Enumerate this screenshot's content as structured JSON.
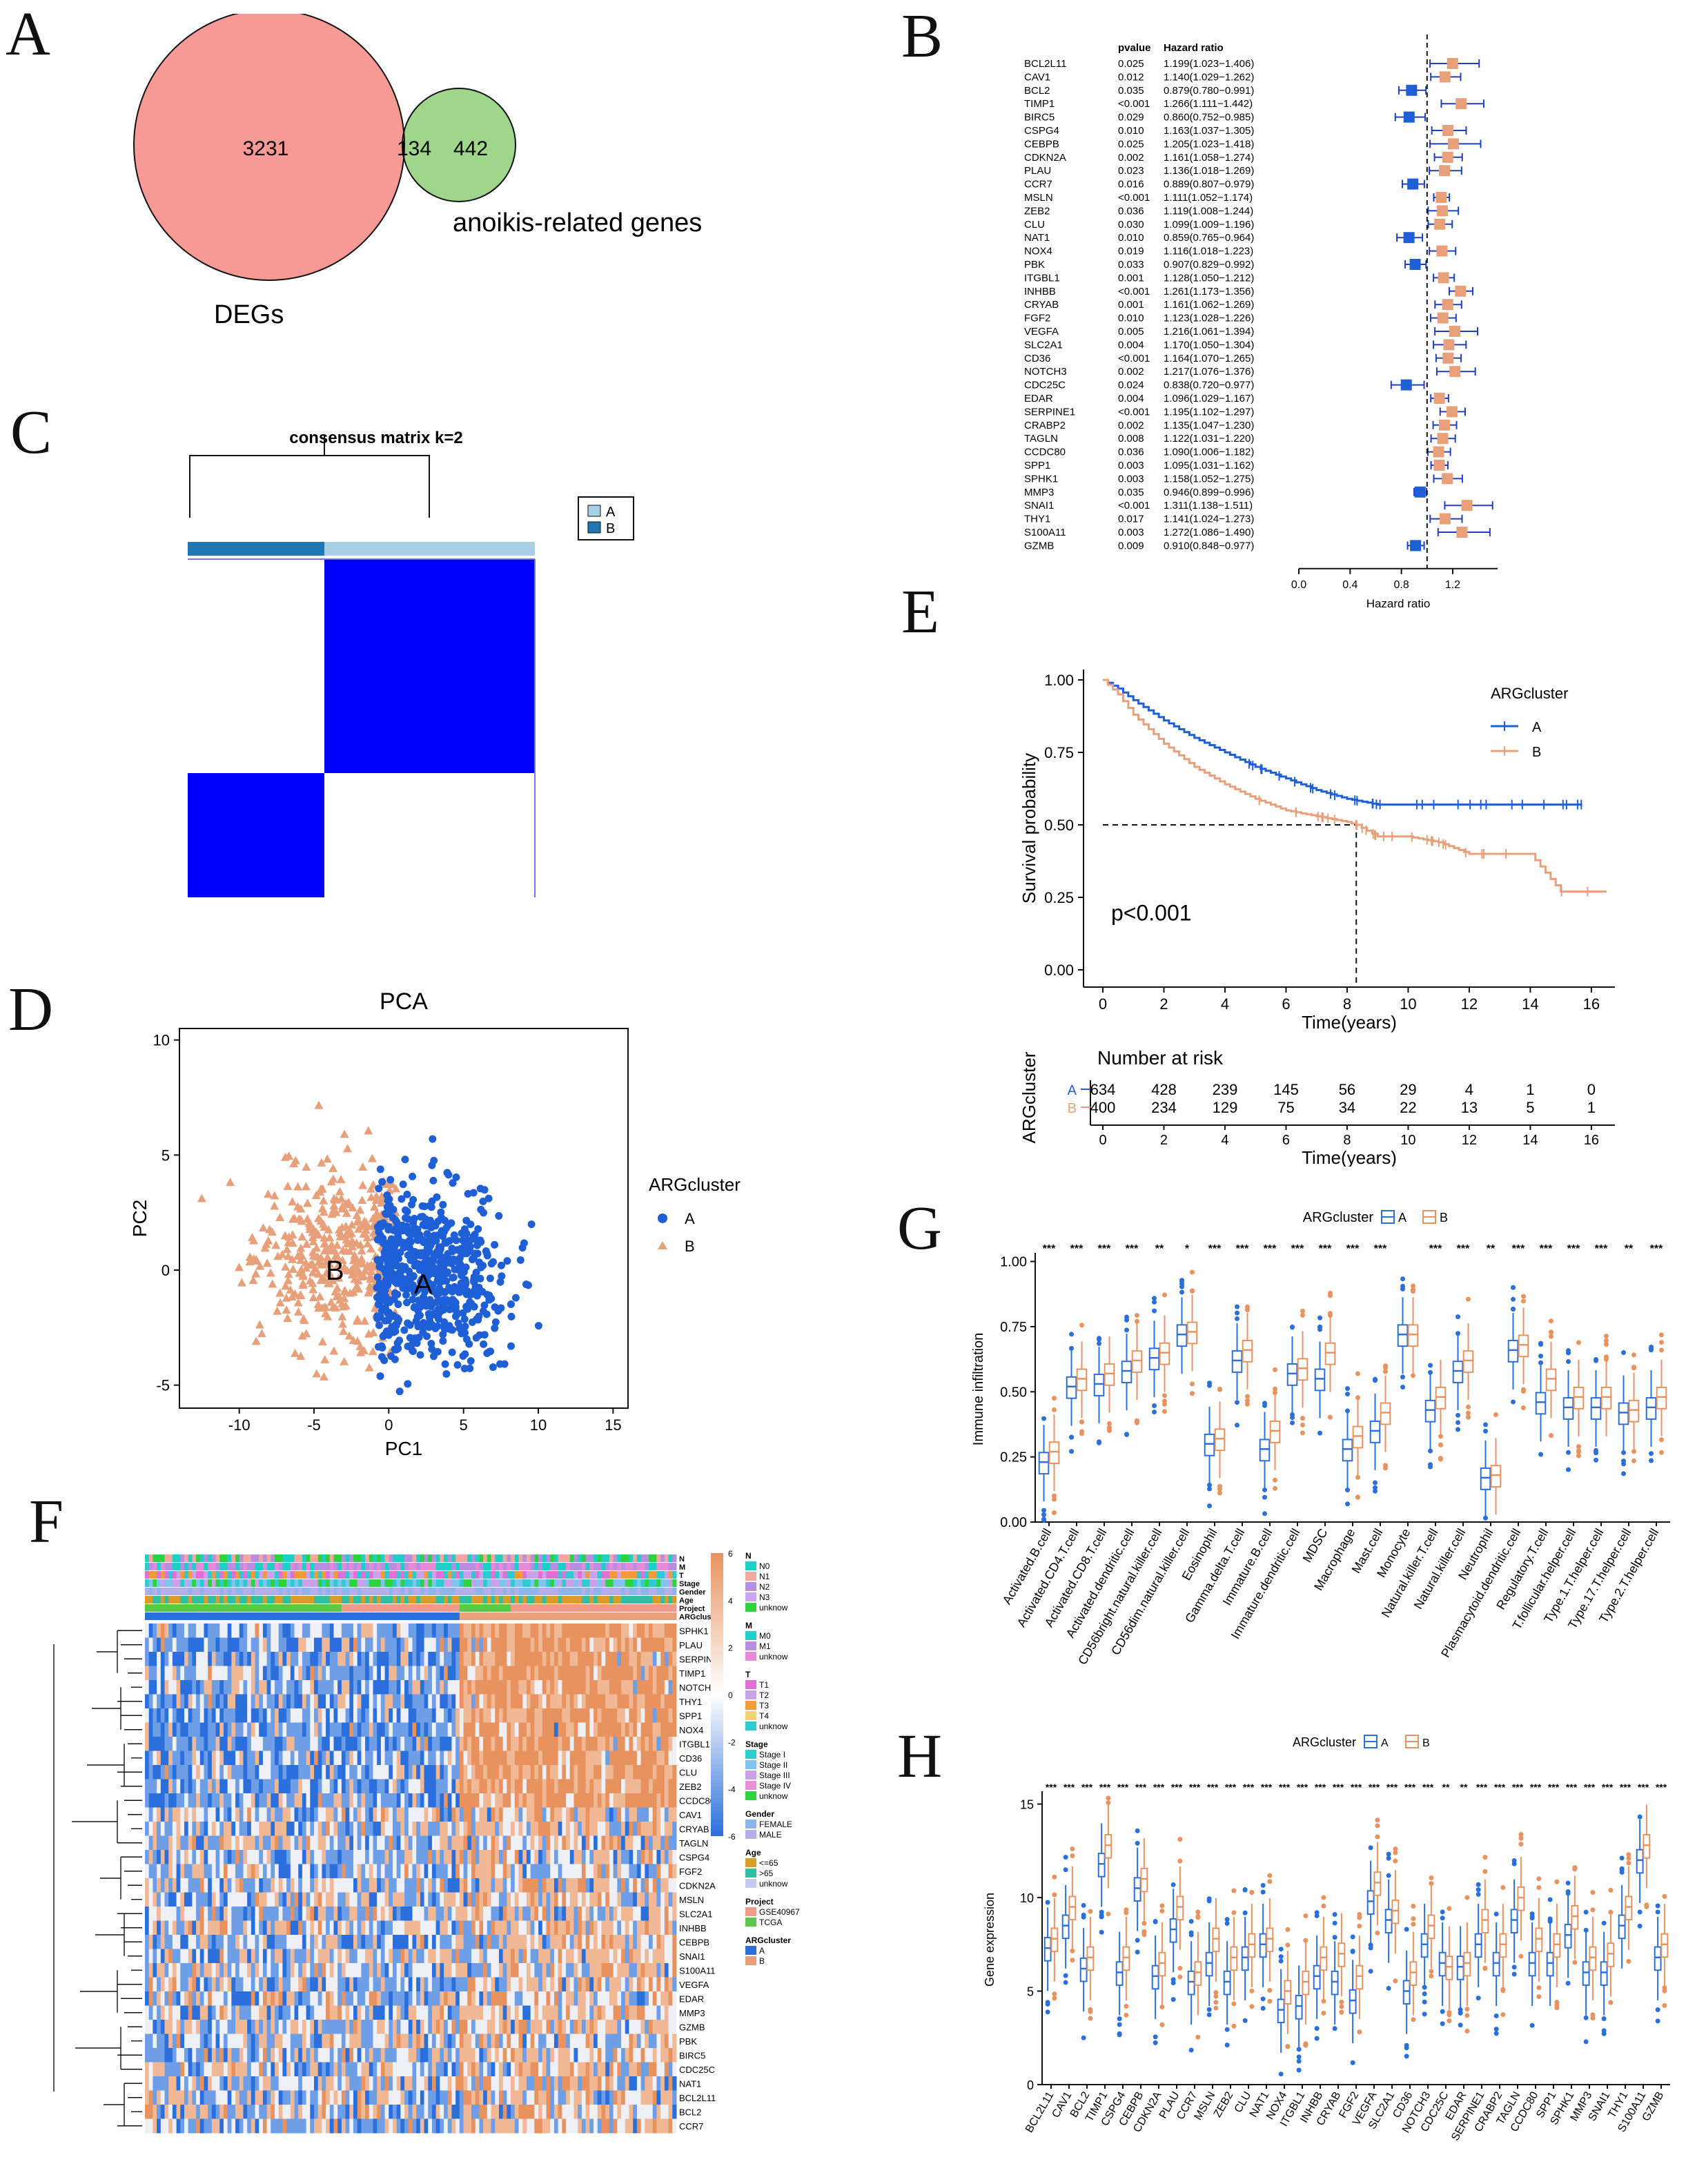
{
  "panel_labels": [
    "A",
    "B",
    "C",
    "D",
    "E",
    "F",
    "G",
    "H"
  ],
  "venn": {
    "left_count": "3231",
    "overlap_count": "134",
    "right_count": "442",
    "left_label": "DEGs",
    "right_label": "anoikis-related genes",
    "colors": {
      "left": "#f79a96",
      "right": "#9fd68c",
      "overlap": "#e6bf96"
    }
  },
  "forest": {
    "col_pvalue": "pvalue",
    "col_hr": "Hazard ratio",
    "xlabel": "Hazard ratio",
    "xticks": [
      "0.0",
      "0.4",
      "0.8",
      "1.2"
    ],
    "xlim": [
      0,
      1.55
    ],
    "ref_line": 1.0,
    "color_risk": "#e8a07a",
    "color_protective": "#1f5fd6",
    "rows": [
      {
        "gene": "BCL2L11",
        "p": "0.025",
        "hr_text": "1.199(1.023−1.406)",
        "hr": 1.199,
        "lo": 1.023,
        "hi": 1.406
      },
      {
        "gene": "CAV1",
        "p": "0.012",
        "hr_text": "1.140(1.029−1.262)",
        "hr": 1.14,
        "lo": 1.029,
        "hi": 1.262
      },
      {
        "gene": "BCL2",
        "p": "0.035",
        "hr_text": "0.879(0.780−0.991)",
        "hr": 0.879,
        "lo": 0.78,
        "hi": 0.991
      },
      {
        "gene": "TIMP1",
        "p": "<0.001",
        "hr_text": "1.266(1.111−1.442)",
        "hr": 1.266,
        "lo": 1.111,
        "hi": 1.442
      },
      {
        "gene": "BIRC5",
        "p": "0.029",
        "hr_text": "0.860(0.752−0.985)",
        "hr": 0.86,
        "lo": 0.752,
        "hi": 0.985
      },
      {
        "gene": "CSPG4",
        "p": "0.010",
        "hr_text": "1.163(1.037−1.305)",
        "hr": 1.163,
        "lo": 1.037,
        "hi": 1.305
      },
      {
        "gene": "CEBPB",
        "p": "0.025",
        "hr_text": "1.205(1.023−1.418)",
        "hr": 1.205,
        "lo": 1.023,
        "hi": 1.418
      },
      {
        "gene": "CDKN2A",
        "p": "0.002",
        "hr_text": "1.161(1.058−1.274)",
        "hr": 1.161,
        "lo": 1.058,
        "hi": 1.274
      },
      {
        "gene": "PLAU",
        "p": "0.023",
        "hr_text": "1.136(1.018−1.269)",
        "hr": 1.136,
        "lo": 1.018,
        "hi": 1.269
      },
      {
        "gene": "CCR7",
        "p": "0.016",
        "hr_text": "0.889(0.807−0.979)",
        "hr": 0.889,
        "lo": 0.807,
        "hi": 0.979
      },
      {
        "gene": "MSLN",
        "p": "<0.001",
        "hr_text": "1.111(1.052−1.174)",
        "hr": 1.111,
        "lo": 1.052,
        "hi": 1.174
      },
      {
        "gene": "ZEB2",
        "p": "0.036",
        "hr_text": "1.119(1.008−1.244)",
        "hr": 1.119,
        "lo": 1.008,
        "hi": 1.244
      },
      {
        "gene": "CLU",
        "p": "0.030",
        "hr_text": "1.099(1.009−1.196)",
        "hr": 1.099,
        "lo": 1.009,
        "hi": 1.196
      },
      {
        "gene": "NAT1",
        "p": "0.010",
        "hr_text": "0.859(0.765−0.964)",
        "hr": 0.859,
        "lo": 0.765,
        "hi": 0.964
      },
      {
        "gene": "NOX4",
        "p": "0.019",
        "hr_text": "1.116(1.018−1.223)",
        "hr": 1.116,
        "lo": 1.018,
        "hi": 1.223
      },
      {
        "gene": "PBK",
        "p": "0.033",
        "hr_text": "0.907(0.829−0.992)",
        "hr": 0.907,
        "lo": 0.829,
        "hi": 0.992
      },
      {
        "gene": "ITGBL1",
        "p": "0.001",
        "hr_text": "1.128(1.050−1.212)",
        "hr": 1.128,
        "lo": 1.05,
        "hi": 1.212
      },
      {
        "gene": "INHBB",
        "p": "<0.001",
        "hr_text": "1.261(1.173−1.356)",
        "hr": 1.261,
        "lo": 1.173,
        "hi": 1.356
      },
      {
        "gene": "CRYAB",
        "p": "0.001",
        "hr_text": "1.161(1.062−1.269)",
        "hr": 1.161,
        "lo": 1.062,
        "hi": 1.269
      },
      {
        "gene": "FGF2",
        "p": "0.010",
        "hr_text": "1.123(1.028−1.226)",
        "hr": 1.123,
        "lo": 1.028,
        "hi": 1.226
      },
      {
        "gene": "VEGFA",
        "p": "0.005",
        "hr_text": "1.216(1.061−1.394)",
        "hr": 1.216,
        "lo": 1.061,
        "hi": 1.394
      },
      {
        "gene": "SLC2A1",
        "p": "0.004",
        "hr_text": "1.170(1.050−1.304)",
        "hr": 1.17,
        "lo": 1.05,
        "hi": 1.304
      },
      {
        "gene": "CD36",
        "p": "<0.001",
        "hr_text": "1.164(1.070−1.265)",
        "hr": 1.164,
        "lo": 1.07,
        "hi": 1.265
      },
      {
        "gene": "NOTCH3",
        "p": "0.002",
        "hr_text": "1.217(1.076−1.376)",
        "hr": 1.217,
        "lo": 1.076,
        "hi": 1.376
      },
      {
        "gene": "CDC25C",
        "p": "0.024",
        "hr_text": "0.838(0.720−0.977)",
        "hr": 0.838,
        "lo": 0.72,
        "hi": 0.977
      },
      {
        "gene": "EDAR",
        "p": "0.004",
        "hr_text": "1.096(1.029−1.167)",
        "hr": 1.096,
        "lo": 1.029,
        "hi": 1.167
      },
      {
        "gene": "SERPINE1",
        "p": "<0.001",
        "hr_text": "1.195(1.102−1.297)",
        "hr": 1.195,
        "lo": 1.102,
        "hi": 1.297
      },
      {
        "gene": "CRABP2",
        "p": "0.002",
        "hr_text": "1.135(1.047−1.230)",
        "hr": 1.135,
        "lo": 1.047,
        "hi": 1.23
      },
      {
        "gene": "TAGLN",
        "p": "0.008",
        "hr_text": "1.122(1.031−1.220)",
        "hr": 1.122,
        "lo": 1.031,
        "hi": 1.22
      },
      {
        "gene": "CCDC80",
        "p": "0.036",
        "hr_text": "1.090(1.006−1.182)",
        "hr": 1.09,
        "lo": 1.006,
        "hi": 1.182
      },
      {
        "gene": "SPP1",
        "p": "0.003",
        "hr_text": "1.095(1.031−1.162)",
        "hr": 1.095,
        "lo": 1.031,
        "hi": 1.162
      },
      {
        "gene": "SPHK1",
        "p": "0.003",
        "hr_text": "1.158(1.052−1.275)",
        "hr": 1.158,
        "lo": 1.052,
        "hi": 1.275
      },
      {
        "gene": "MMP3",
        "p": "0.035",
        "hr_text": "0.946(0.899−0.996)",
        "hr": 0.946,
        "lo": 0.899,
        "hi": 0.996
      },
      {
        "gene": "SNAI1",
        "p": "<0.001",
        "hr_text": "1.311(1.138−1.511)",
        "hr": 1.311,
        "lo": 1.138,
        "hi": 1.511
      },
      {
        "gene": "THY1",
        "p": "0.017",
        "hr_text": "1.141(1.024−1.273)",
        "hr": 1.141,
        "lo": 1.024,
        "hi": 1.273
      },
      {
        "gene": "S100A11",
        "p": "0.003",
        "hr_text": "1.272(1.086−1.490)",
        "hr": 1.272,
        "lo": 1.086,
        "hi": 1.49
      },
      {
        "gene": "GZMB",
        "p": "0.009",
        "hr_text": "0.910(0.848−0.977)",
        "hr": 0.91,
        "lo": 0.848,
        "hi": 0.977
      }
    ]
  },
  "consensus": {
    "title": "consensus matrix k=2",
    "legend": [
      "A",
      "B"
    ],
    "colors": {
      "A": "#a9cfe6",
      "B": "#1f78b4",
      "block": "#0000ff"
    },
    "cluster_fraction_B": 0.39
  },
  "chart_data": [
    {
      "type": "scatter",
      "title": "PCA",
      "xlabel": "PC1",
      "ylabel": "PC2",
      "xlim": [
        -14,
        16
      ],
      "ylim": [
        -6,
        10.5
      ],
      "xticks": [
        "-10",
        "-5",
        "0",
        "5",
        "10",
        "15"
      ],
      "yticks": [
        "-5",
        "0",
        "5",
        "10"
      ],
      "legend_title": "ARGcluster",
      "series": [
        {
          "name": "A",
          "color": "#1f5fd6",
          "marker": "circle",
          "n": 634,
          "center": [
            2.2,
            -0.3
          ],
          "spread": [
            2.8,
            1.9
          ]
        },
        {
          "name": "B",
          "color": "#e8a07a",
          "marker": "triangle",
          "n": 400,
          "center": [
            -3.5,
            0.6
          ],
          "spread": [
            2.7,
            2.0
          ]
        }
      ],
      "annotations": [
        "B",
        "A"
      ]
    },
    {
      "type": "line",
      "title": "",
      "xlabel": "Time(years)",
      "ylabel": "Survival probability",
      "xlim": [
        0,
        16.5
      ],
      "ylim": [
        0,
        1
      ],
      "xticks": [
        "0",
        "2",
        "4",
        "6",
        "8",
        "10",
        "12",
        "14",
        "16"
      ],
      "yticks": [
        "0.00",
        "0.25",
        "0.50",
        "0.75",
        "1.00"
      ],
      "legend_title": "ARGcluster",
      "p_value_text": "p<0.001",
      "median_survival_B": 8.3,
      "series": [
        {
          "name": "A",
          "color": "#1f5fd6",
          "x": [
            0,
            0.5,
            1,
            2,
            3,
            4,
            5,
            6,
            7,
            8,
            8.5,
            9,
            10,
            12,
            14,
            15.7
          ],
          "y": [
            1.0,
            0.97,
            0.93,
            0.86,
            0.8,
            0.75,
            0.7,
            0.66,
            0.62,
            0.59,
            0.58,
            0.57,
            0.57,
            0.57,
            0.57,
            0.57
          ]
        },
        {
          "name": "B",
          "color": "#e8a07a",
          "x": [
            0,
            0.5,
            1,
            1.5,
            2,
            3,
            4,
            5,
            6,
            7,
            8,
            8.3,
            9,
            10,
            11,
            12,
            13,
            14,
            15,
            16.5
          ],
          "y": [
            1.0,
            0.95,
            0.88,
            0.83,
            0.78,
            0.7,
            0.64,
            0.59,
            0.55,
            0.53,
            0.51,
            0.5,
            0.46,
            0.46,
            0.44,
            0.4,
            0.4,
            0.4,
            0.27,
            0.27
          ]
        }
      ],
      "risk_table": {
        "title": "Number at risk",
        "ylabel": "ARGcluster",
        "xlabel": "Time(years)",
        "times": [
          "0",
          "2",
          "4",
          "6",
          "8",
          "10",
          "12",
          "14",
          "16"
        ],
        "rows": [
          {
            "name": "A",
            "counts": [
              "634",
              "428",
              "239",
              "145",
              "56",
              "29",
              "4",
              "1",
              "0"
            ]
          },
          {
            "name": "B",
            "counts": [
              "400",
              "234",
              "129",
              "75",
              "34",
              "22",
              "13",
              "5",
              "1"
            ]
          }
        ]
      }
    },
    {
      "type": "box",
      "title": "",
      "ylabel": "Immune infiltration",
      "ylim": [
        0,
        1.02
      ],
      "yticks": [
        "0.00",
        "0.25",
        "0.50",
        "0.75",
        "1.00"
      ],
      "legend_title": "ARGcluster",
      "legend": [
        "A",
        "B"
      ],
      "categories": [
        "Activated.B.cell",
        "Activated.CD4.T.cell",
        "Activated.CD8.T.cell",
        "Activated.dendritic.cell",
        "CD56bright.natural.killer.cell",
        "CD56dim.natural.killer.cell",
        "Eosinophil",
        "Gamma.delta.T.cell",
        "Immature.B.cell",
        "Immature.dendritic.cell",
        "MDSC",
        "Macrophage",
        "Mast.cell",
        "Monocyte",
        "Natural.killer.T.cell",
        "Natural.killer.cell",
        "Neutrophil",
        "Plasmacytoid.dendritic.cell",
        "Regulatory.T.cell",
        "T.follicular.helper.cell",
        "Type.1.T.helper.cell",
        "Type.17.T.helper.cell",
        "Type.2.T.helper.cell"
      ],
      "significance": [
        "***",
        "***",
        "***",
        "***",
        "**",
        "*",
        "***",
        "***",
        "***",
        "***",
        "***",
        "***",
        "***",
        "",
        "***",
        "***",
        "**",
        "***",
        "***",
        "***",
        "***",
        "**",
        "***"
      ],
      "median_A": [
        0.23,
        0.52,
        0.53,
        0.58,
        0.63,
        0.72,
        0.3,
        0.62,
        0.28,
        0.57,
        0.55,
        0.28,
        0.35,
        0.72,
        0.43,
        0.58,
        0.17,
        0.66,
        0.46,
        0.44,
        0.44,
        0.42,
        0.44
      ],
      "median_B": [
        0.27,
        0.55,
        0.57,
        0.62,
        0.65,
        0.73,
        0.32,
        0.66,
        0.35,
        0.59,
        0.65,
        0.33,
        0.42,
        0.72,
        0.48,
        0.62,
        0.18,
        0.68,
        0.55,
        0.48,
        0.48,
        0.43,
        0.48
      ]
    },
    {
      "type": "box",
      "title": "",
      "ylabel": "Gene expression",
      "ylim": [
        0,
        15.5
      ],
      "yticks": [
        "0",
        "5",
        "10",
        "15"
      ],
      "legend_title": "ARGcluster",
      "legend": [
        "A",
        "B"
      ],
      "categories": [
        "BCL2L11",
        "CAV1",
        "BCL2",
        "TIMP1",
        "CSPG4",
        "CEBPB",
        "CDKN2A",
        "PLAU",
        "CCR7",
        "MSLN",
        "ZEB2",
        "CLU",
        "NAT1",
        "NOX4",
        "ITGBL1",
        "INHBB",
        "CRYAB",
        "FGF2",
        "VEGFA",
        "SLC2A1",
        "CD36",
        "NOTCH3",
        "CDC25C",
        "EDAR",
        "SERPINE1",
        "CRABP2",
        "TAGLN",
        "CCDC80",
        "SPP1",
        "SPHK1",
        "MMP3",
        "SNAI1",
        "THY1",
        "S100A11",
        "GZMB"
      ],
      "significance": [
        "***",
        "***",
        "***",
        "***",
        "***",
        "***",
        "***",
        "***",
        "***",
        "***",
        "***",
        "***",
        "***",
        "***",
        "***",
        "***",
        "***",
        "***",
        "***",
        "***",
        "***",
        "***",
        "**",
        "**",
        "***",
        "***",
        "***",
        "***",
        "***",
        "***",
        "***",
        "***",
        "***",
        "***",
        "***"
      ],
      "median_A": [
        7.3,
        8.5,
        6.2,
        11.8,
        6.0,
        10.5,
        5.8,
        8.3,
        5.5,
        6.5,
        5.5,
        6.8,
        7.5,
        4.0,
        4.2,
        5.8,
        5.5,
        4.5,
        9.8,
        8.8,
        5.0,
        7.5,
        6.5,
        6.3,
        7.5,
        6.5,
        8.8,
        6.5,
        6.5,
        8.0,
        6.0,
        6.0,
        8.5,
        12.0,
        6.8
      ],
      "median_B": [
        7.8,
        9.5,
        6.8,
        12.8,
        6.8,
        11.0,
        6.5,
        9.5,
        6.0,
        7.8,
        6.8,
        7.5,
        7.8,
        5.0,
        5.5,
        6.8,
        7.0,
        5.8,
        10.8,
        9.3,
        6.0,
        8.5,
        6.3,
        6.5,
        8.8,
        7.5,
        10.0,
        7.8,
        7.5,
        9.0,
        6.8,
        7.0,
        9.5,
        12.8,
        7.5
      ]
    }
  ],
  "heatmap": {
    "annotation_tracks": [
      "N",
      "M",
      "T",
      "Stage",
      "Gender",
      "Age",
      "Project",
      "ARGcluster"
    ],
    "genes": [
      "SPHK1",
      "PLAU",
      "SERPINE1",
      "TIMP1",
      "NOTCH3",
      "THY1",
      "SPP1",
      "NOX4",
      "ITGBL1",
      "CD36",
      "CLU",
      "ZEB2",
      "CCDC80",
      "CAV1",
      "CRYAB",
      "TAGLN",
      "CSPG4",
      "FGF2",
      "CDKN2A",
      "MSLN",
      "SLC2A1",
      "INHBB",
      "CEBPB",
      "SNAI1",
      "S100A11",
      "VEGFA",
      "EDAR",
      "MMP3",
      "GZMB",
      "PBK",
      "BIRC5",
      "CDC25C",
      "NAT1",
      "BCL2L11",
      "BCL2",
      "CCR7"
    ],
    "scale_ticks": [
      "6",
      "4",
      "2",
      "0",
      "-2",
      "-4",
      "-6"
    ],
    "colors": {
      "low": "#2a6fdb",
      "mid": "#ffffff",
      "high": "#e8a07a"
    },
    "fraction_A": 0.592,
    "legends": [
      {
        "title": "N",
        "items": [
          {
            "label": "N0",
            "color": "#1ecfc8"
          },
          {
            "label": "N1",
            "color": "#f4a6a0"
          },
          {
            "label": "N2",
            "color": "#b88fe0"
          },
          {
            "label": "N3",
            "color": "#cda4ef"
          },
          {
            "label": "unknow",
            "color": "#2ed23f"
          }
        ]
      },
      {
        "title": "M",
        "items": [
          {
            "label": "M0",
            "color": "#1ecfc8"
          },
          {
            "label": "M1",
            "color": "#b88fe0"
          },
          {
            "label": "unknow",
            "color": "#e58ad9"
          }
        ]
      },
      {
        "title": "T",
        "items": [
          {
            "label": "T1",
            "color": "#e06fd6"
          },
          {
            "label": "T2",
            "color": "#c9a2e8"
          },
          {
            "label": "T3",
            "color": "#f39b3a"
          },
          {
            "label": "T4",
            "color": "#f0d36e"
          },
          {
            "label": "unknow",
            "color": "#2fc9d0"
          }
        ]
      },
      {
        "title": "Stage",
        "items": [
          {
            "label": "Stage I",
            "color": "#2fc9d0"
          },
          {
            "label": "Stage II",
            "color": "#7ec4ef"
          },
          {
            "label": "Stage III",
            "color": "#c9a2e8"
          },
          {
            "label": "Stage IV",
            "color": "#e88fd8"
          },
          {
            "label": "unknow",
            "color": "#2ed23f"
          }
        ]
      },
      {
        "title": "Gender",
        "items": [
          {
            "label": "FEMALE",
            "color": "#8eb4ec"
          },
          {
            "label": "MALE",
            "color": "#b6aee8"
          }
        ]
      },
      {
        "title": "Age",
        "items": [
          {
            "label": "<=65",
            "color": "#d99b2a"
          },
          {
            "label": ">65",
            "color": "#2fbfa0"
          },
          {
            "label": "unknow",
            "color": "#c8c8f0"
          }
        ]
      },
      {
        "title": "Project",
        "items": [
          {
            "label": "GSE40967",
            "color": "#f29a8a"
          },
          {
            "label": "TCGA",
            "color": "#5cc84a"
          }
        ]
      },
      {
        "title": "ARGcluster",
        "items": [
          {
            "label": "A",
            "color": "#2a6fdb"
          },
          {
            "label": "B",
            "color": "#e8a07a"
          }
        ]
      }
    ]
  }
}
